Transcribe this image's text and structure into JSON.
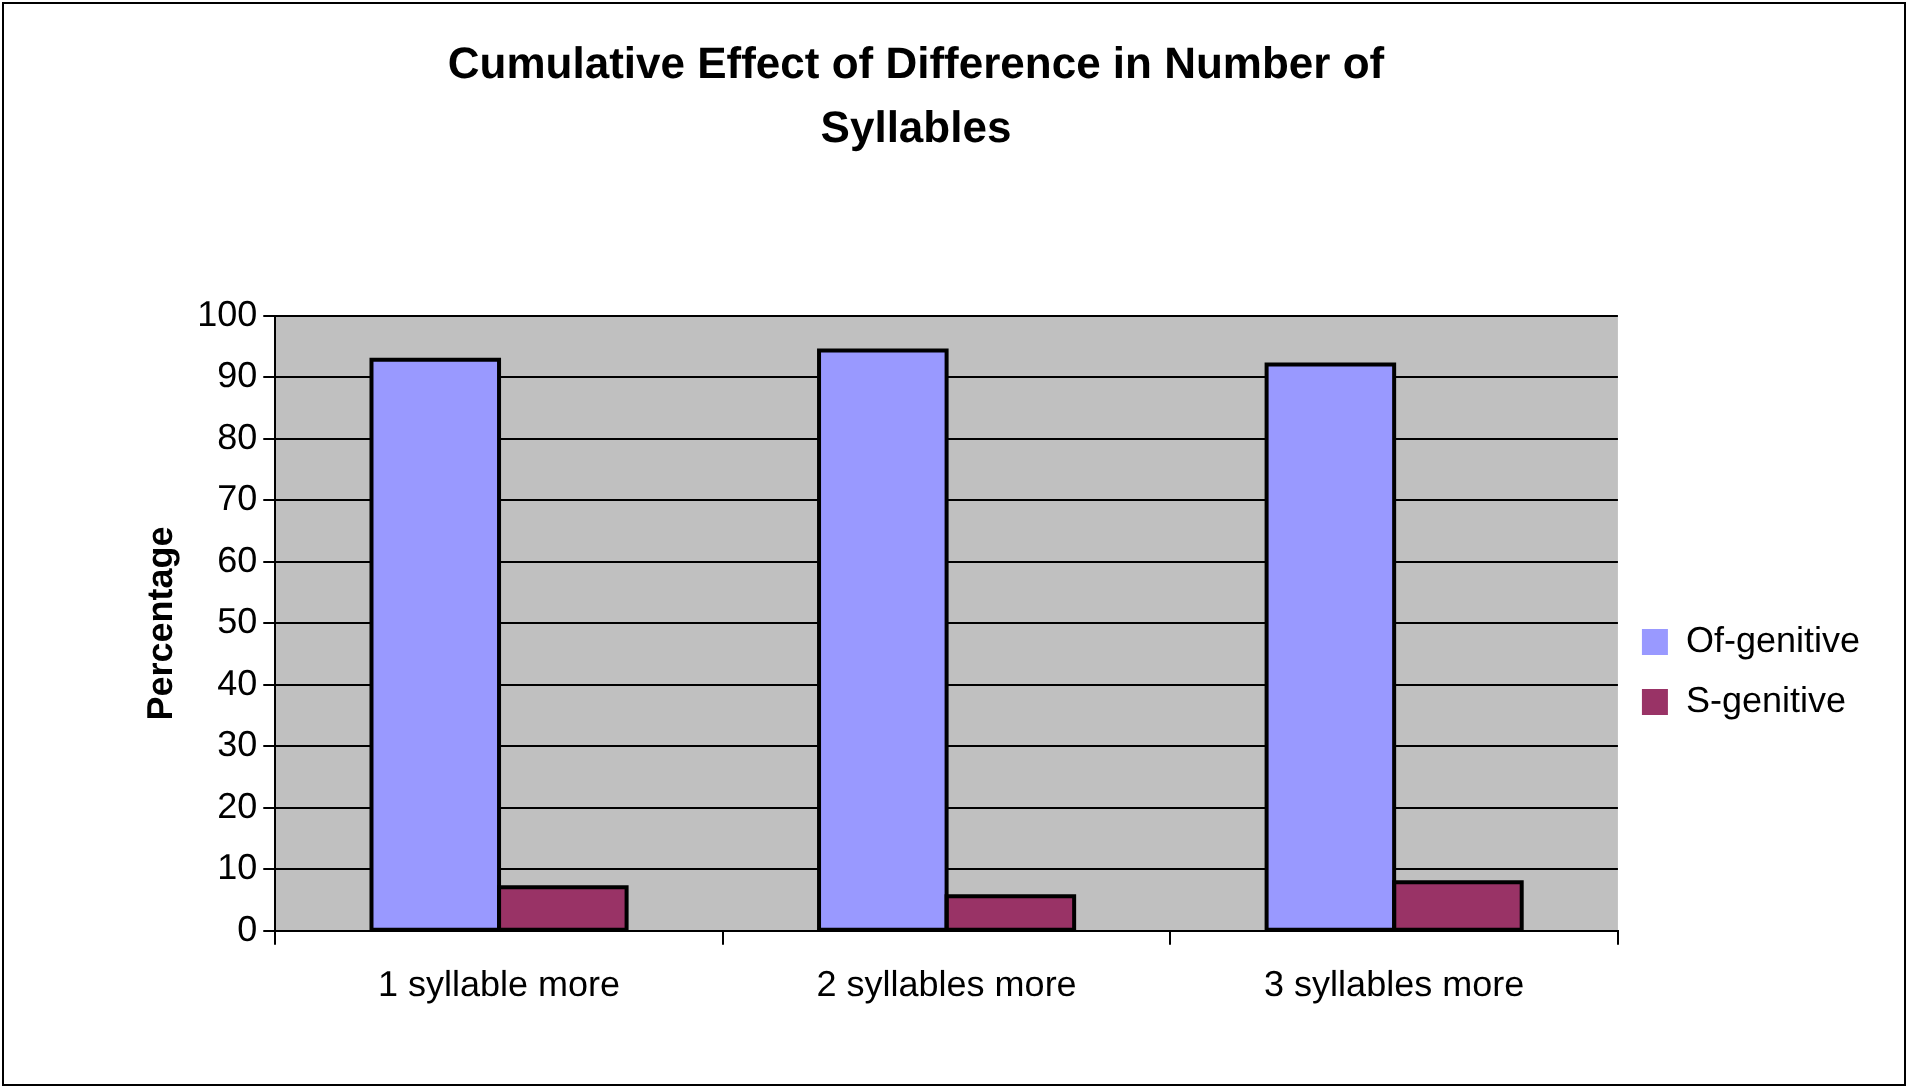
{
  "chart_data": {
    "type": "bar",
    "title": "Cumulative Effect of Difference in Number of Syllables",
    "ylabel": "Percentage",
    "categories": [
      "1 syllable more",
      "2 syllables more",
      "3 syllables more"
    ],
    "series": [
      {
        "name": "Of-genitive",
        "color": "#9999ff",
        "values": [
          92.9,
          94.4,
          92.1
        ]
      },
      {
        "name": "S-genitive",
        "color": "#993366",
        "values": [
          7.1,
          5.6,
          7.9
        ]
      }
    ],
    "ylim": [
      0,
      100
    ],
    "yticks": [
      0,
      10,
      20,
      30,
      40,
      50,
      60,
      70,
      80,
      90,
      100
    ],
    "grid": "y",
    "legend": "right"
  }
}
